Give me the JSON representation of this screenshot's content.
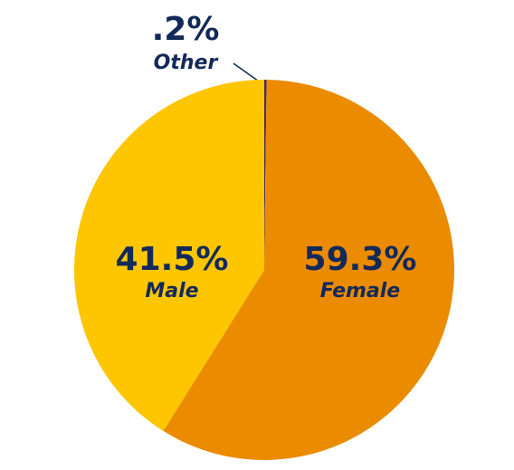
{
  "chart_data": {
    "type": "pie",
    "categories": [
      "Other",
      "Female",
      "Male"
    ],
    "values": [
      0.2,
      59.3,
      41.5
    ],
    "value_labels": [
      ".2%",
      "59.3%",
      "41.5%"
    ],
    "colors": [
      "#4a2d6b",
      "#ea8b00",
      "#fdc600"
    ]
  }
}
